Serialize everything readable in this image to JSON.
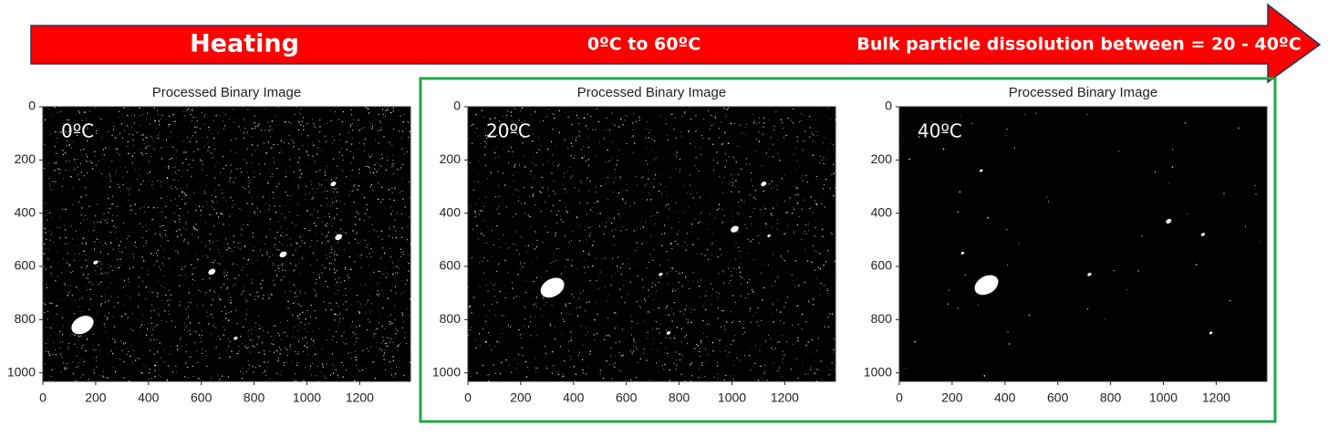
{
  "banner": {
    "left": "Heating",
    "middle": "0ºC to 60ºC",
    "right": "Bulk particle dissolution between = 20 - 40ºC"
  },
  "panels": [
    {
      "title": "Processed Binary Image",
      "label": "0ºC",
      "xticks": [
        0,
        200,
        400,
        600,
        800,
        1000,
        1200
      ],
      "yticks": [
        0,
        200,
        400,
        600,
        800,
        1000
      ]
    },
    {
      "title": "Processed Binary Image",
      "label": "20ºC",
      "xticks": [
        0,
        200,
        400,
        600,
        800,
        1000,
        1200
      ],
      "yticks": [
        0,
        200,
        400,
        600,
        800,
        1000
      ]
    },
    {
      "title": "Processed Binary Image",
      "label": "40ºC",
      "xticks": [
        0,
        200,
        400,
        600,
        800,
        1000,
        1200
      ],
      "yticks": [
        0,
        200,
        400,
        600,
        800,
        1000
      ]
    }
  ]
}
